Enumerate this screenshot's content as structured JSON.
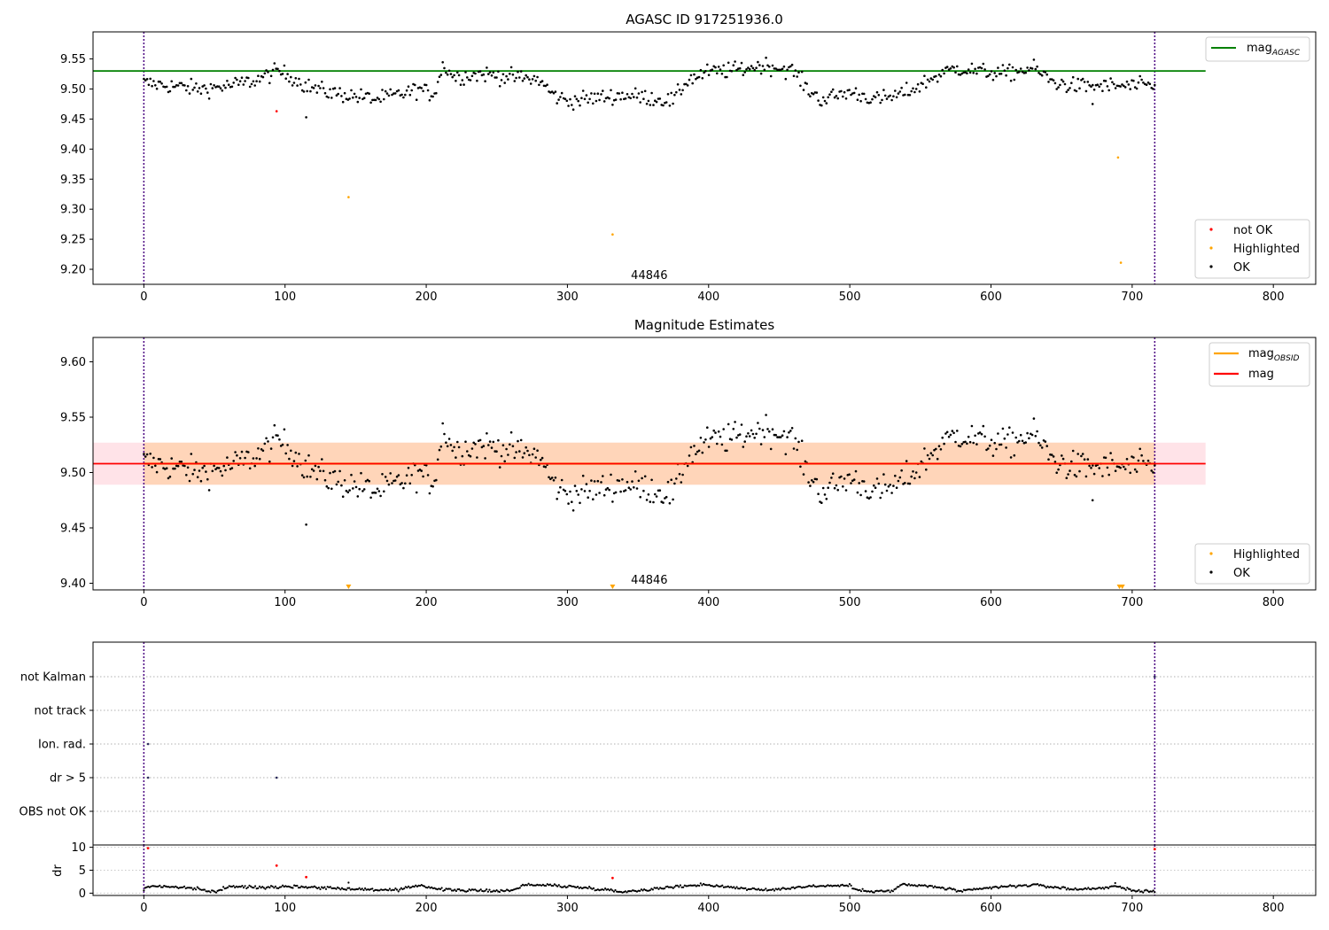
{
  "chart_data": [
    {
      "type": "scatter",
      "title": "AGASC ID 917251936.0",
      "xlabel": "",
      "ylabel": "",
      "xlim": [
        -36,
        830
      ],
      "ylim": [
        9.175,
        9.595
      ],
      "xticks": [
        "0",
        "100",
        "200",
        "300",
        "400",
        "500",
        "600",
        "700",
        "800"
      ],
      "yticks": [
        "9.20",
        "9.25",
        "9.30",
        "9.35",
        "9.40",
        "9.45",
        "9.50",
        "9.55"
      ],
      "obsid_boundaries": [
        0,
        716
      ],
      "obsid_label": {
        "text": "44846",
        "x": 358,
        "y": 9.19
      },
      "reference_line": {
        "name": "mag",
        "subscript": "AGASC",
        "y": 9.53,
        "x_range": [
          -36,
          752
        ],
        "color": "#008000"
      },
      "legend": {
        "placement": "upper-right",
        "entries": [
          {
            "label": "mag",
            "subscript": "AGASC",
            "kind": "line",
            "color": "#008000"
          }
        ]
      },
      "legend2": {
        "placement": "lower-right",
        "entries": [
          {
            "label": "not OK",
            "kind": "point",
            "color": "#ff0000"
          },
          {
            "label": "Highlighted",
            "kind": "point",
            "color": "#ffa500"
          },
          {
            "label": "OK",
            "kind": "point",
            "color": "#000000"
          }
        ]
      },
      "series": [
        {
          "name": "not OK",
          "color": "#ff0000",
          "points": [
            [
              94,
              9.463
            ]
          ]
        },
        {
          "name": "Highlighted",
          "color": "#ffa500",
          "points": [
            [
              145,
              9.32
            ],
            [
              332,
              9.258
            ],
            [
              690,
              9.386
            ],
            [
              692,
              9.211
            ]
          ]
        },
        {
          "name": "OK",
          "color": "#000000",
          "trend": [
            [
              0,
              9.51
            ],
            [
              20,
              9.505
            ],
            [
              40,
              9.5
            ],
            [
              60,
              9.505
            ],
            [
              80,
              9.515
            ],
            [
              95,
              9.53
            ],
            [
              105,
              9.52
            ],
            [
              115,
              9.505
            ],
            [
              130,
              9.495
            ],
            [
              150,
              9.488
            ],
            [
              165,
              9.483
            ],
            [
              180,
              9.49
            ],
            [
              195,
              9.5
            ],
            [
              205,
              9.49
            ],
            [
              212,
              9.54
            ],
            [
              220,
              9.52
            ],
            [
              240,
              9.525
            ],
            [
              260,
              9.52
            ],
            [
              280,
              9.515
            ],
            [
              290,
              9.49
            ],
            [
              300,
              9.48
            ],
            [
              320,
              9.485
            ],
            [
              340,
              9.49
            ],
            [
              360,
              9.485
            ],
            [
              375,
              9.48
            ],
            [
              385,
              9.515
            ],
            [
              400,
              9.528
            ],
            [
              420,
              9.532
            ],
            [
              440,
              9.54
            ],
            [
              460,
              9.53
            ],
            [
              470,
              9.5
            ],
            [
              480,
              9.482
            ],
            [
              500,
              9.495
            ],
            [
              520,
              9.482
            ],
            [
              535,
              9.49
            ],
            [
              545,
              9.5
            ],
            [
              560,
              9.52
            ],
            [
              575,
              9.535
            ],
            [
              590,
              9.53
            ],
            [
              610,
              9.525
            ],
            [
              630,
              9.535
            ],
            [
              645,
              9.51
            ],
            [
              660,
              9.505
            ],
            [
              680,
              9.505
            ],
            [
              700,
              9.505
            ],
            [
              716,
              9.505
            ]
          ],
          "spread": 0.011,
          "count": 620,
          "outliers": [
            [
              115,
              9.453
            ],
            [
              672,
              9.475
            ]
          ]
        }
      ]
    },
    {
      "type": "scatter",
      "title": "Magnitude Estimates",
      "xlabel": "",
      "ylabel": "",
      "xlim": [
        -36,
        830
      ],
      "ylim": [
        9.394,
        9.622
      ],
      "xticks": [
        "0",
        "100",
        "200",
        "300",
        "400",
        "500",
        "600",
        "700",
        "800"
      ],
      "yticks": [
        "9.40",
        "9.45",
        "9.50",
        "9.55",
        "9.60"
      ],
      "obsid_boundaries": [
        0,
        716
      ],
      "obsid_label": {
        "text": "44846",
        "x": 358,
        "y": 9.403
      },
      "bands": [
        {
          "name": "mag",
          "low": 9.489,
          "high": 9.527,
          "x_range": [
            -36,
            752
          ],
          "color": "#ffc0cb"
        },
        {
          "name": "mag_OBSID",
          "low": 9.489,
          "high": 9.527,
          "x_range": [
            0,
            716
          ],
          "color": "#ffcc99"
        }
      ],
      "lines": [
        {
          "name": "mag",
          "subscript": "OBSID",
          "y": 9.508,
          "x_range": [
            0,
            716
          ],
          "color": "#ffa500"
        },
        {
          "name": "mag",
          "y": 9.508,
          "x_range": [
            -36,
            752
          ],
          "color": "#ff0000"
        }
      ],
      "legend": {
        "placement": "upper-right",
        "entries": [
          {
            "label": "mag",
            "subscript": "OBSID",
            "kind": "line",
            "color": "#ffa500"
          },
          {
            "label": "mag",
            "kind": "line",
            "color": "#ff0000"
          }
        ]
      },
      "legend2": {
        "placement": "lower-right",
        "entries": [
          {
            "label": "Highlighted",
            "kind": "point",
            "color": "#ffa500"
          },
          {
            "label": "OK",
            "kind": "point",
            "color": "#000000"
          }
        ]
      },
      "series": [
        {
          "name": "Highlighted (below axis)",
          "color": "#ffa500",
          "points": [
            [
              145,
              9.396
            ],
            [
              332,
              9.396
            ],
            [
              691,
              9.396
            ],
            [
              693,
              9.396
            ]
          ]
        }
      ]
    },
    {
      "type": "scatter",
      "title": "",
      "xlim": [
        -36,
        830
      ],
      "categories": [
        "not Kalman",
        "not track",
        "Ion. rad.",
        "dr > 5",
        "OBS not OK"
      ],
      "obsid_boundaries": [
        0,
        716
      ],
      "series": [
        {
          "name": "flags",
          "color": "#2a2a5a",
          "points": [
            [
              716,
              "not Kalman"
            ],
            [
              3,
              "Ion. rad."
            ],
            [
              3,
              "dr > 5"
            ],
            [
              94,
              "dr > 5"
            ]
          ]
        }
      ]
    },
    {
      "type": "scatter",
      "title": "",
      "ylabel": "dr",
      "xlim": [
        -36,
        830
      ],
      "ylim": [
        -0.5,
        10.5
      ],
      "xticks": [
        "0",
        "100",
        "200",
        "300",
        "400",
        "500",
        "600",
        "700",
        "800"
      ],
      "yticks": [
        "0",
        "5",
        "10"
      ],
      "obsid_boundaries": [
        0,
        716
      ],
      "series": [
        {
          "name": "not OK",
          "color": "#ff0000",
          "points": [
            [
              3,
              9.8
            ],
            [
              94,
              6.0
            ],
            [
              115,
              3.5
            ],
            [
              332,
              3.3
            ],
            [
              716,
              9.6
            ]
          ]
        },
        {
          "name": "OK",
          "color": "#000000",
          "trend": [
            [
              0,
              0.8
            ],
            [
              5,
              1.6
            ],
            [
              30,
              1.2
            ],
            [
              50,
              0.3
            ],
            [
              60,
              1.4
            ],
            [
              85,
              1.3
            ],
            [
              100,
              1.5
            ],
            [
              120,
              1.3
            ],
            [
              150,
              0.9
            ],
            [
              180,
              0.6
            ],
            [
              195,
              1.8
            ],
            [
              210,
              0.8
            ],
            [
              240,
              0.5
            ],
            [
              262,
              0.6
            ],
            [
              268,
              1.8
            ],
            [
              290,
              1.7
            ],
            [
              320,
              1.0
            ],
            [
              340,
              0.3
            ],
            [
              370,
              1.2
            ],
            [
              395,
              1.9
            ],
            [
              420,
              1.2
            ],
            [
              440,
              0.6
            ],
            [
              470,
              1.5
            ],
            [
              500,
              1.7
            ],
            [
              505,
              0.6
            ],
            [
              530,
              0.4
            ],
            [
              537,
              1.9
            ],
            [
              560,
              1.4
            ],
            [
              580,
              0.4
            ],
            [
              600,
              1.2
            ],
            [
              630,
              1.8
            ],
            [
              660,
              0.8
            ],
            [
              690,
              1.4
            ],
            [
              700,
              0.6
            ],
            [
              716,
              0.4
            ]
          ],
          "spread": 0.25,
          "count": 700,
          "outliers": [
            [
              145,
              2.3
            ],
            [
              688,
              2.2
            ]
          ]
        }
      ]
    }
  ]
}
